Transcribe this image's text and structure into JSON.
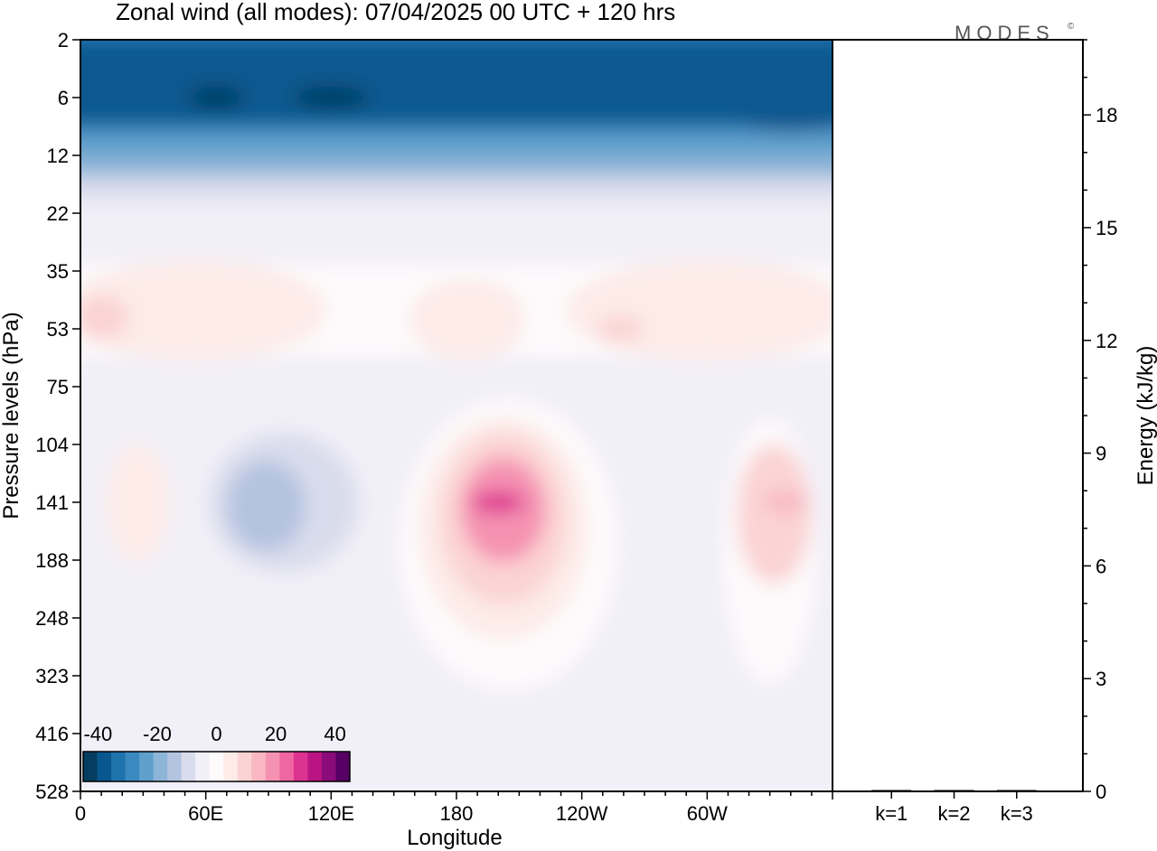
{
  "chart_data": [
    {
      "type": "heatmap",
      "title": "Zonal wind (all modes):  07/04/2025  00 UTC  + 120 hrs",
      "xlabel": "Longitude",
      "ylabel": "Pressure levels (hPa)",
      "x_ticks": [
        "0",
        "60E",
        "120E",
        "180",
        "120W",
        "60W"
      ],
      "x_tick_lon": [
        0,
        60,
        120,
        180,
        240,
        300
      ],
      "x_range": [
        0,
        360
      ],
      "y_ticks": [
        "2",
        "6",
        "12",
        "22",
        "35",
        "53",
        "75",
        "104",
        "141",
        "188",
        "248",
        "323",
        "416",
        "528"
      ],
      "y_note": "pressure levels top to bottom (2 hPa at top, 528 hPa at bottom)",
      "color_scale": {
        "ticks": [
          "-40",
          "-20",
          "0",
          "20",
          "40"
        ],
        "min": -45,
        "max": 45,
        "step": 5,
        "colors": [
          "#053d61",
          "#08588f",
          "#1f73ad",
          "#3a8ac0",
          "#5e9fcc",
          "#8db5d8",
          "#b4c3e0",
          "#d9dcec",
          "#f1eff7",
          "#fdfafc",
          "#fdebe8",
          "#fbd3d3",
          "#f8b7c2",
          "#f592b2",
          "#ef66a2",
          "#dd3390",
          "#b91482",
          "#8a0b79",
          "#560063"
        ]
      },
      "field_features": [
        {
          "kind": "stratospheric easterly band",
          "lon": [
            0,
            360
          ],
          "p": [
            2,
            22
          ],
          "value_max": -45
        },
        {
          "kind": "westerly band",
          "lon": [
            0,
            360
          ],
          "p": [
            35,
            60
          ],
          "value_max": 12
        },
        {
          "kind": "westerly core",
          "lon": [
            195,
            205
          ],
          "p": [
            141,
            141
          ],
          "value_max": 30
        },
        {
          "kind": "westerly core",
          "lon": [
            335,
            340
          ],
          "p": [
            141,
            141
          ],
          "value_max": 22
        },
        {
          "kind": "weak easterly",
          "lon": [
            70,
            125
          ],
          "p": [
            104,
            188
          ],
          "value_max": -12
        }
      ]
    },
    {
      "type": "bar",
      "ylabel": "Energy (kJ/kg)",
      "categories": [
        "k=1",
        "k=2",
        "k=3"
      ],
      "values": [
        0.02,
        0.01,
        0.01
      ],
      "ylim": [
        0,
        20
      ],
      "y_ticks": [
        0,
        3,
        6,
        9,
        12,
        15,
        18
      ]
    }
  ],
  "logo": "MODES",
  "logo_mark": "©"
}
